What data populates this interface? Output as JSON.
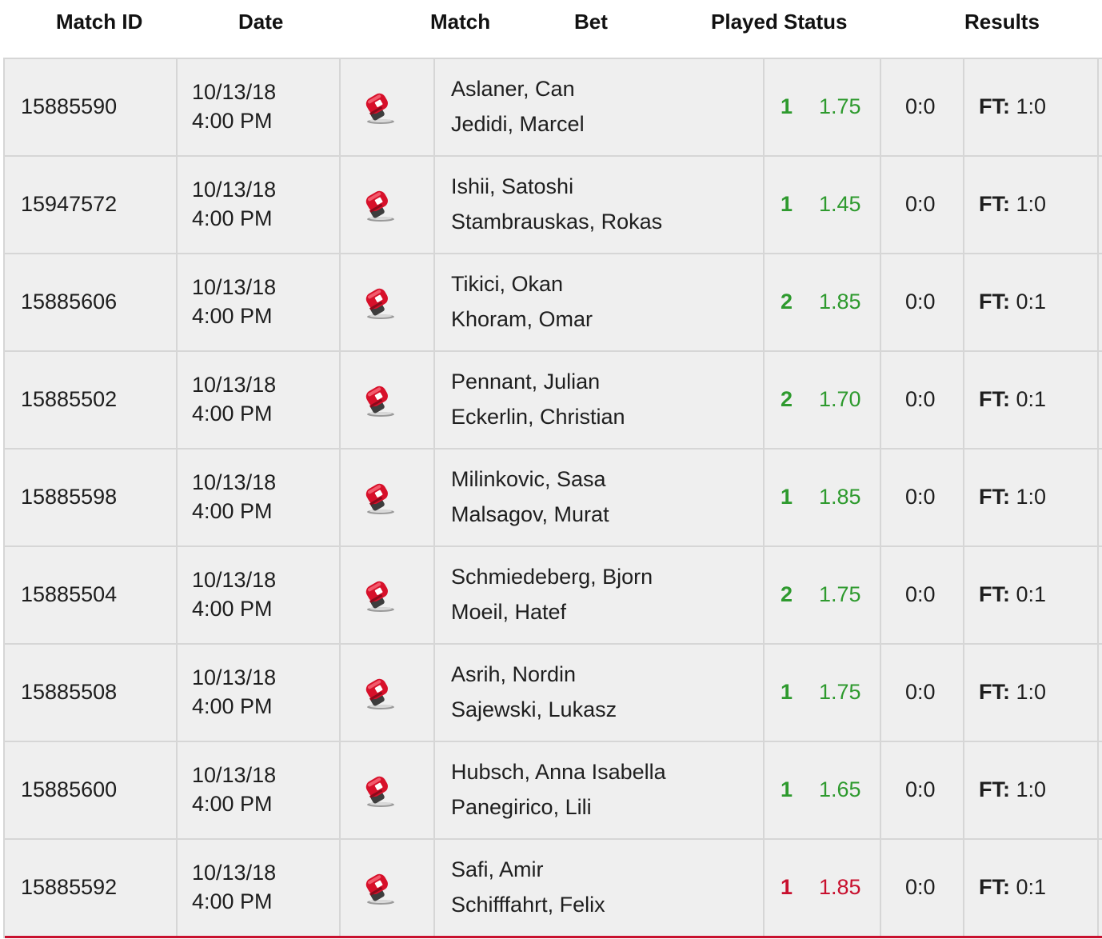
{
  "columns": {
    "match_id": "Match ID",
    "date": "Date",
    "match": "Match",
    "bet": "Bet",
    "played_status": "Played Status",
    "results": "Results"
  },
  "colors": {
    "win": "#2e9a2e",
    "loss": "#c8102e"
  },
  "icon_name": "boxing-glove-icon",
  "result_prefix": "FT:",
  "rows": [
    {
      "id": "15885590",
      "date": "10/13/18",
      "time": "4:00 PM",
      "player1": "Aslaner, Can",
      "player2": "Jedidi, Marcel",
      "pick": "1",
      "odds": "1.75",
      "outcome": "win",
      "status": "0:0",
      "result": "1:0"
    },
    {
      "id": "15947572",
      "date": "10/13/18",
      "time": "4:00 PM",
      "player1": "Ishii, Satoshi",
      "player2": "Stambrauskas, Rokas",
      "pick": "1",
      "odds": "1.45",
      "outcome": "win",
      "status": "0:0",
      "result": "1:0"
    },
    {
      "id": "15885606",
      "date": "10/13/18",
      "time": "4:00 PM",
      "player1": "Tikici, Okan",
      "player2": "Khoram, Omar",
      "pick": "2",
      "odds": "1.85",
      "outcome": "win",
      "status": "0:0",
      "result": "0:1"
    },
    {
      "id": "15885502",
      "date": "10/13/18",
      "time": "4:00 PM",
      "player1": "Pennant, Julian",
      "player2": "Eckerlin, Christian",
      "pick": "2",
      "odds": "1.70",
      "outcome": "win",
      "status": "0:0",
      "result": "0:1"
    },
    {
      "id": "15885598",
      "date": "10/13/18",
      "time": "4:00 PM",
      "player1": "Milinkovic, Sasa",
      "player2": "Malsagov, Murat",
      "pick": "1",
      "odds": "1.85",
      "outcome": "win",
      "status": "0:0",
      "result": "1:0"
    },
    {
      "id": "15885504",
      "date": "10/13/18",
      "time": "4:00 PM",
      "player1": "Schmiedeberg, Bjorn",
      "player2": "Moeil, Hatef",
      "pick": "2",
      "odds": "1.75",
      "outcome": "win",
      "status": "0:0",
      "result": "0:1"
    },
    {
      "id": "15885508",
      "date": "10/13/18",
      "time": "4:00 PM",
      "player1": "Asrih, Nordin",
      "player2": "Sajewski, Lukasz",
      "pick": "1",
      "odds": "1.75",
      "outcome": "win",
      "status": "0:0",
      "result": "1:0"
    },
    {
      "id": "15885600",
      "date": "10/13/18",
      "time": "4:00 PM",
      "player1": "Hubsch, Anna Isabella",
      "player2": "Panegirico, Lili",
      "pick": "1",
      "odds": "1.65",
      "outcome": "win",
      "status": "0:0",
      "result": "1:0"
    },
    {
      "id": "15885592",
      "date": "10/13/18",
      "time": "4:00 PM",
      "player1": "Safi, Amir",
      "player2": "Schifffahrt, Felix",
      "pick": "1",
      "odds": "1.85",
      "outcome": "loss",
      "status": "0:0",
      "result": "0:1"
    }
  ]
}
